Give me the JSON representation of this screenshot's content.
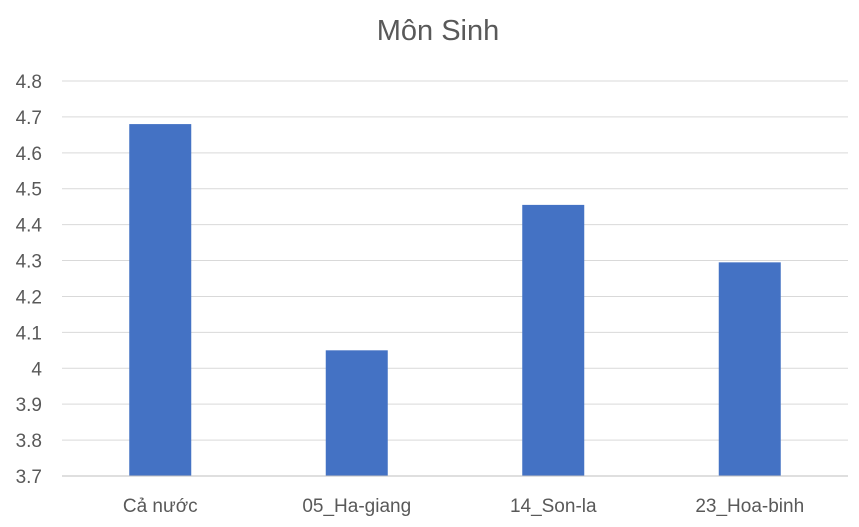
{
  "chart_data": {
    "type": "bar",
    "title": "Môn Sinh",
    "xlabel": "",
    "ylabel": "",
    "categories": [
      "Cả nước",
      "05_Ha-giang",
      "14_Son-la",
      "23_Hoa-binh"
    ],
    "values": [
      4.68,
      4.05,
      4.455,
      4.295
    ],
    "ylim": [
      3.7,
      4.8
    ],
    "yticks": [
      "3.7",
      "3.8",
      "3.9",
      "4",
      "4.1",
      "4.2",
      "4.3",
      "4.4",
      "4.5",
      "4.6",
      "4.7",
      "4.8"
    ],
    "grid": true,
    "legend": "none",
    "bar_color": "#4472c4"
  }
}
